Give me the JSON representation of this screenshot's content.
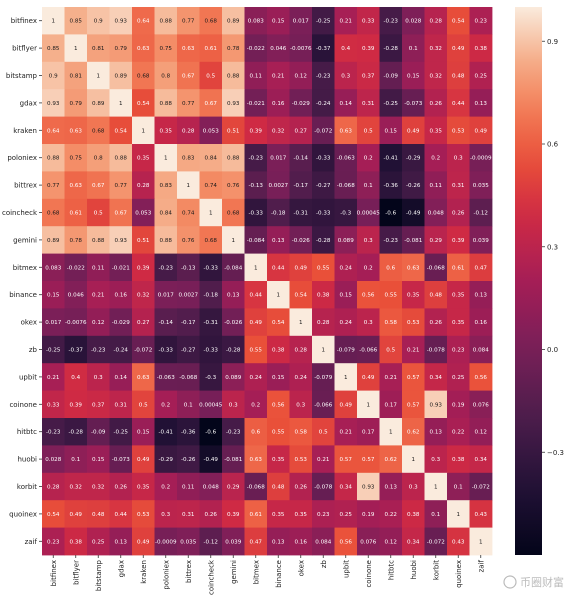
{
  "chart_data": {
    "type": "heatmap",
    "title": "",
    "labels": [
      "bitfinex",
      "bitflyer",
      "bitstamp",
      "gdax",
      "kraken",
      "poloniex",
      "bittrex",
      "coincheck",
      "gemini",
      "bitmex",
      "binance",
      "okex",
      "zb",
      "upbit",
      "coinone",
      "hitbtc",
      "huobi",
      "korbit",
      "quoinex",
      "zaif"
    ],
    "matrix": [
      [
        "1",
        "0.85",
        "0.9",
        "0.93",
        "0.64",
        "0.88",
        "0.77",
        "0.68",
        "0.89",
        "0.083",
        "0.15",
        "0.017",
        "-0.25",
        "0.21",
        "0.33",
        "-0.23",
        "0.028",
        "0.28",
        "0.54",
        "0.23"
      ],
      [
        "0.85",
        "1",
        "0.81",
        "0.79",
        "0.63",
        "0.75",
        "0.63",
        "0.61",
        "0.78",
        "-0.022",
        "0.046",
        "-0.0076",
        "-0.37",
        "0.4",
        "0.39",
        "-0.28",
        "0.1",
        "0.32",
        "0.49",
        "0.38"
      ],
      [
        "0.9",
        "0.81",
        "1",
        "0.89",
        "0.68",
        "0.8",
        "0.67",
        "0.5",
        "0.88",
        "0.11",
        "0.21",
        "0.12",
        "-0.23",
        "0.3",
        "0.37",
        "-0.09",
        "0.15",
        "0.32",
        "0.48",
        "0.25"
      ],
      [
        "0.93",
        "0.79",
        "0.89",
        "1",
        "0.54",
        "0.88",
        "0.77",
        "0.67",
        "0.93",
        "-0.021",
        "0.16",
        "-0.029",
        "-0.24",
        "0.14",
        "0.31",
        "-0.25",
        "-0.073",
        "0.26",
        "0.44",
        "0.13"
      ],
      [
        "0.64",
        "0.63",
        "0.68",
        "0.54",
        "1",
        "0.35",
        "0.28",
        "0.053",
        "0.51",
        "0.39",
        "0.32",
        "0.27",
        "-0.072",
        "0.63",
        "0.5",
        "0.15",
        "0.49",
        "0.35",
        "0.53",
        "0.49"
      ],
      [
        "0.88",
        "0.75",
        "0.8",
        "0.88",
        "0.35",
        "1",
        "0.83",
        "0.84",
        "0.88",
        "-0.23",
        "0.017",
        "-0.14",
        "-0.33",
        "-0.063",
        "0.2",
        "-0.41",
        "-0.29",
        "0.2",
        "0.3",
        "-0.0009"
      ],
      [
        "0.77",
        "0.63",
        "0.67",
        "0.77",
        "0.28",
        "0.83",
        "1",
        "0.74",
        "0.76",
        "-0.13",
        "0.0027",
        "-0.17",
        "-0.27",
        "-0.068",
        "0.1",
        "-0.36",
        "-0.26",
        "0.11",
        "0.31",
        "0.035"
      ],
      [
        "0.68",
        "0.61",
        "0.5",
        "0.67",
        "0.053",
        "0.84",
        "0.74",
        "1",
        "0.68",
        "-0.33",
        "-0.18",
        "-0.31",
        "-0.33",
        "-0.3",
        "0.00045",
        "-0.6",
        "-0.49",
        "0.048",
        "0.26",
        "-0.12"
      ],
      [
        "0.89",
        "0.78",
        "0.88",
        "0.93",
        "0.51",
        "0.88",
        "0.76",
        "0.68",
        "1",
        "-0.084",
        "0.13",
        "-0.026",
        "-0.28",
        "0.089",
        "0.3",
        "-0.23",
        "-0.081",
        "0.29",
        "0.39",
        "0.039"
      ],
      [
        "0.083",
        "-0.022",
        "0.11",
        "-0.021",
        "0.39",
        "-0.23",
        "-0.13",
        "-0.33",
        "-0.084",
        "1",
        "0.44",
        "0.49",
        "0.55",
        "0.24",
        "0.2",
        "0.6",
        "0.63",
        "-0.068",
        "0.61",
        "0.47"
      ],
      [
        "0.15",
        "0.046",
        "0.21",
        "0.16",
        "0.32",
        "0.017",
        "0.0027",
        "-0.18",
        "0.13",
        "0.44",
        "1",
        "0.54",
        "0.38",
        "0.15",
        "0.56",
        "0.55",
        "0.35",
        "0.48",
        "0.35",
        "0.13"
      ],
      [
        "0.017",
        "-0.0076",
        "0.12",
        "-0.029",
        "0.27",
        "-0.14",
        "-0.17",
        "-0.31",
        "-0.026",
        "0.49",
        "0.54",
        "1",
        "0.28",
        "0.24",
        "0.3",
        "0.58",
        "0.53",
        "0.26",
        "0.35",
        "0.16"
      ],
      [
        "-0.25",
        "-0.37",
        "-0.23",
        "-0.24",
        "-0.072",
        "-0.33",
        "-0.27",
        "-0.33",
        "-0.28",
        "0.55",
        "0.38",
        "0.28",
        "1",
        "-0.079",
        "-0.066",
        "0.5",
        "0.21",
        "-0.078",
        "0.23",
        "0.084"
      ],
      [
        "0.21",
        "0.4",
        "0.3",
        "0.14",
        "0.63",
        "-0.063",
        "-0.068",
        "-0.3",
        "0.089",
        "0.24",
        "0.15",
        "0.24",
        "-0.079",
        "1",
        "0.49",
        "0.21",
        "0.57",
        "0.34",
        "0.25",
        "0.56"
      ],
      [
        "0.33",
        "0.39",
        "0.37",
        "0.31",
        "0.5",
        "0.2",
        "0.1",
        "0.00045",
        "0.3",
        "0.2",
        "0.56",
        "0.3",
        "-0.066",
        "0.49",
        "1",
        "0.17",
        "0.57",
        "0.93",
        "0.19",
        "0.076"
      ],
      [
        "-0.23",
        "-0.28",
        "-0.09",
        "-0.25",
        "0.15",
        "-0.41",
        "-0.36",
        "-0.6",
        "-0.23",
        "0.6",
        "0.55",
        "0.58",
        "0.5",
        "0.21",
        "0.17",
        "1",
        "0.62",
        "0.13",
        "0.22",
        "0.12"
      ],
      [
        "0.028",
        "0.1",
        "0.15",
        "-0.073",
        "0.49",
        "-0.29",
        "-0.26",
        "-0.49",
        "-0.081",
        "0.63",
        "0.35",
        "0.53",
        "0.21",
        "0.57",
        "0.57",
        "0.62",
        "1",
        "0.3",
        "0.38",
        "0.34"
      ],
      [
        "0.28",
        "0.32",
        "0.32",
        "0.26",
        "0.35",
        "0.2",
        "0.11",
        "0.048",
        "0.29",
        "-0.068",
        "0.48",
        "0.26",
        "-0.078",
        "0.34",
        "0.93",
        "0.13",
        "0.3",
        "1",
        "0.1",
        "-0.072"
      ],
      [
        "0.54",
        "0.49",
        "0.48",
        "0.44",
        "0.53",
        "0.3",
        "0.31",
        "0.26",
        "0.39",
        "0.61",
        "0.35",
        "0.35",
        "0.23",
        "0.25",
        "0.19",
        "0.22",
        "0.38",
        "0.1",
        "1",
        "0.43"
      ],
      [
        "0.23",
        "0.38",
        "0.25",
        "0.13",
        "0.49",
        "-0.0009",
        "0.035",
        "-0.12",
        "0.039",
        "0.47",
        "0.13",
        "0.16",
        "0.084",
        "0.56",
        "0.076",
        "0.12",
        "0.34",
        "-0.072",
        "0.43",
        "1"
      ]
    ],
    "colorbar": {
      "min": -0.6,
      "max": 1.0,
      "ticks": [
        "0.9",
        "0.6",
        "0.3",
        "0.0",
        "-0.3"
      ]
    },
    "colormap": "rocket",
    "watermark": "币圈财富"
  }
}
